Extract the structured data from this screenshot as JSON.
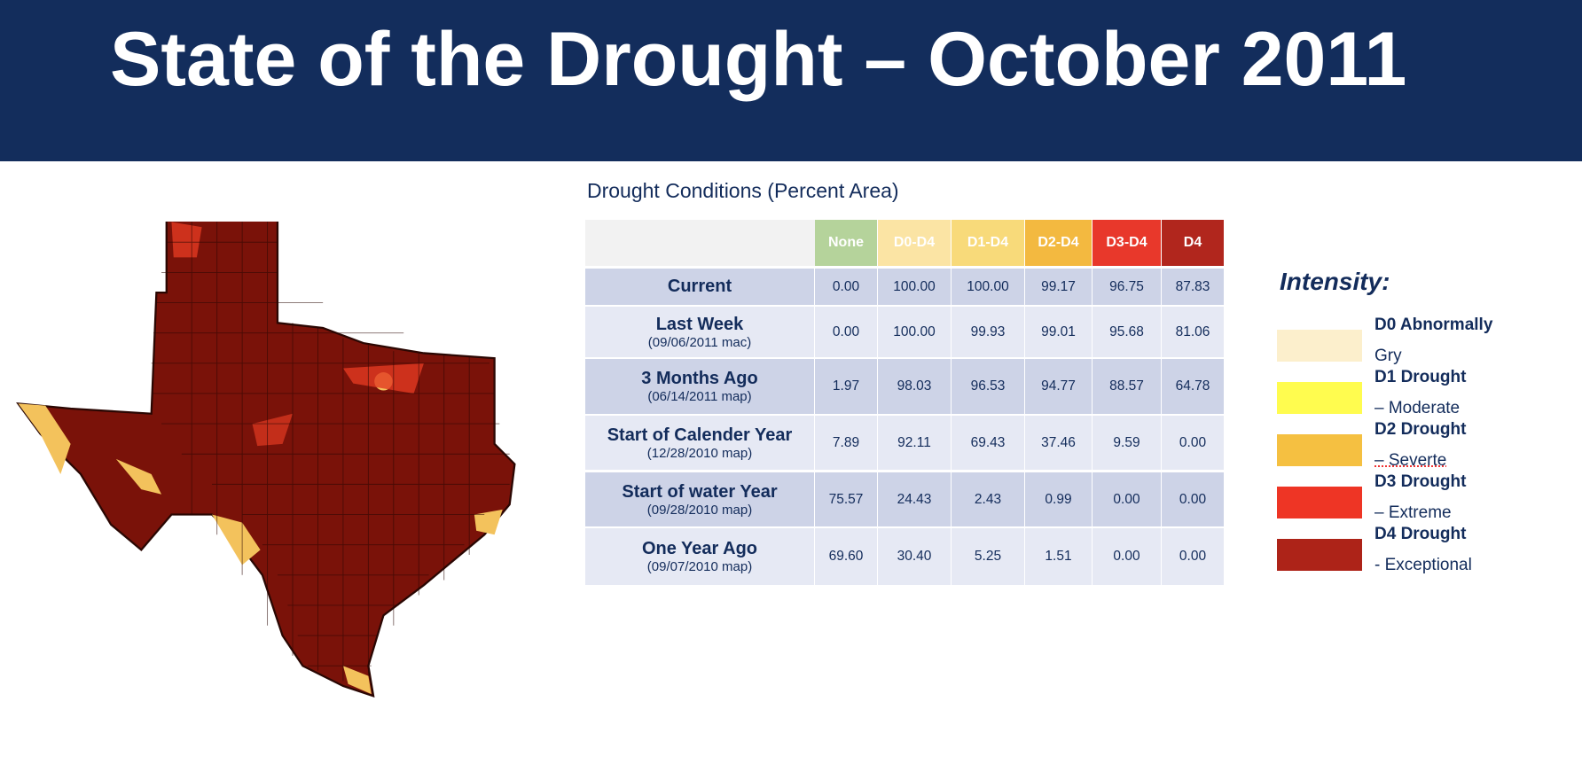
{
  "header": {
    "title": "State of the Drought – October 2011"
  },
  "table": {
    "title": "Drought Conditions (Percent Area)",
    "columns": [
      {
        "label": "None",
        "color": "#b5d39b"
      },
      {
        "label": "D0-D4",
        "color": "#fbe4a4"
      },
      {
        "label": "D1-D4",
        "color": "#f8da7a"
      },
      {
        "label": "D2-D4",
        "color": "#f3b940"
      },
      {
        "label": "D3-D4",
        "color": "#e8382b"
      },
      {
        "label": "D4",
        "color": "#b1261d"
      }
    ],
    "rows": [
      {
        "label": "Current",
        "cells": [
          "0.00",
          "100.00",
          "100.00",
          "99.17",
          "96.75",
          "87.83"
        ]
      },
      {
        "label": "Last Week",
        "sublabel": "(09/06/2011 mac)",
        "cells": [
          "0.00",
          "100.00",
          "99.93",
          "99.01",
          "95.68",
          "81.06"
        ]
      },
      {
        "label": "3 Months Ago",
        "sublabel": "(06/14/2011 map)",
        "cells": [
          "1.97",
          "98.03",
          "96.53",
          "94.77",
          "88.57",
          "64.78"
        ]
      },
      {
        "label": "Start of Calender Year",
        "sublabel": "(12/28/2010 map)",
        "cells": [
          "7.89",
          "92.11",
          "69.43",
          "37.46",
          "9.59",
          "0.00"
        ]
      },
      {
        "label": "Start of water Year",
        "sublabel": "(09/28/2010 map)",
        "cells": [
          "75.57",
          "24.43",
          "2.43",
          "0.99",
          "0.00",
          "0.00"
        ]
      },
      {
        "label": "One Year Ago",
        "sublabel": "(09/07/2010 map)",
        "cells": [
          "69.60",
          "30.40",
          "5.25",
          "1.51",
          "0.00",
          "0.00"
        ]
      }
    ]
  },
  "legend": {
    "title": "Intensity:",
    "items": [
      {
        "title": "D0 Abnormally",
        "subtitle": "Gry",
        "color": "#fcefcc"
      },
      {
        "title": "D1 Drought",
        "subtitle": "– Moderate",
        "color": "#fffc4f"
      },
      {
        "title": "D2 Drought",
        "subtitle": "– Severte",
        "color": "#f5c041"
      },
      {
        "title": "D3 Drought",
        "subtitle": "– Extreme",
        "color": "#ee3525"
      },
      {
        "title": "D4 Drought",
        "subtitle": "- Exceptional",
        "color": "#ad2318"
      }
    ]
  }
}
